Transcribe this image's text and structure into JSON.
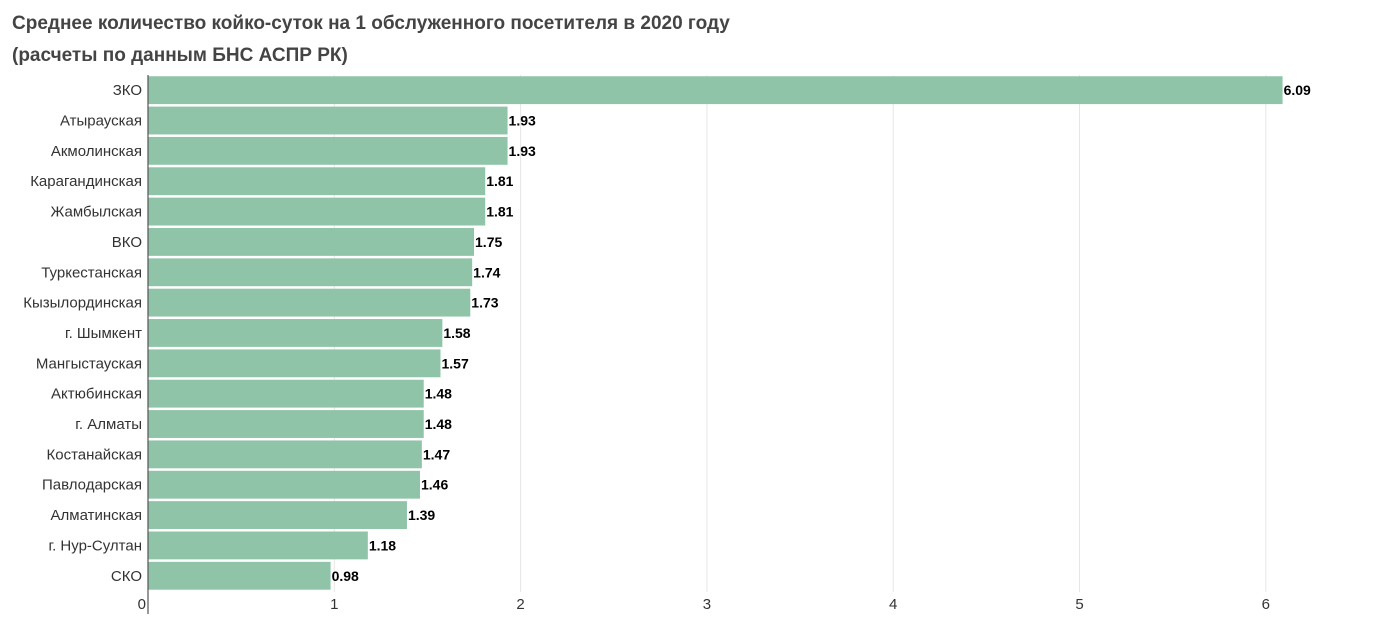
{
  "chart_data": {
    "type": "bar",
    "orientation": "horizontal",
    "title": "Среднее количество койко-суток на 1 обслуженного посетителя в 2020 году",
    "subtitle": "(расчеты по данным БНС АСПР РК)",
    "categories": [
      "ЗКО",
      "Атырауская",
      "Акмолинская",
      "Карагандинская",
      "Жамбылская",
      "ВКО",
      "Туркестанская",
      "Кызылординская",
      "г. Шымкент",
      "Мангыстауская",
      "Актюбинская",
      "г. Алматы",
      "Костанайская",
      "Павлодарская",
      "Алматинская",
      "г. Нур-Султан",
      "СКО"
    ],
    "values": [
      6.09,
      1.93,
      1.93,
      1.81,
      1.81,
      1.75,
      1.74,
      1.73,
      1.58,
      1.57,
      1.48,
      1.48,
      1.47,
      1.46,
      1.39,
      1.18,
      0.98
    ],
    "value_labels": [
      "6.09",
      "1.93",
      "1.93",
      "1.81",
      "1.81",
      "1.75",
      "1.74",
      "1.73",
      "1.58",
      "1.57",
      "1.48",
      "1.48",
      "1.47",
      "1.46",
      "1.39",
      "1.18",
      "0.98"
    ],
    "xticks": [
      "0",
      "1",
      "2",
      "3",
      "4",
      "5",
      "6"
    ],
    "xlim": [
      0,
      6.5
    ],
    "xlabel": "",
    "ylabel": "",
    "grid": true,
    "legend": "none",
    "bar_color": "#8fc4a8",
    "grid_color": "#e6e6e6",
    "axis_color": "#555555"
  }
}
